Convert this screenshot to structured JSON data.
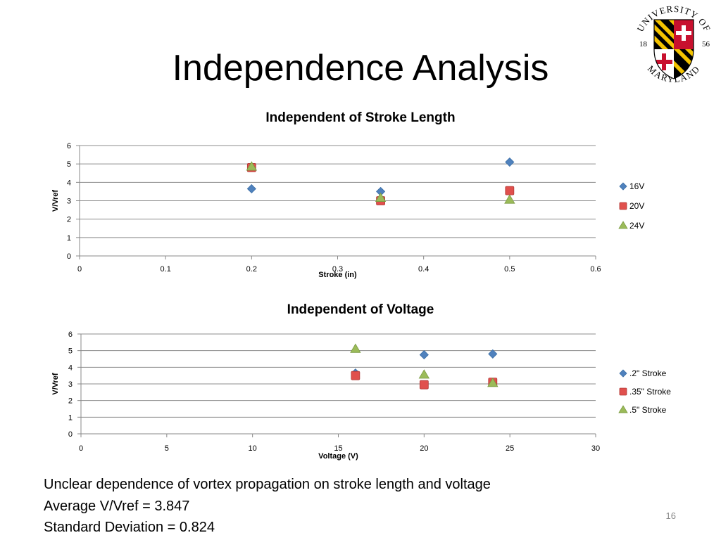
{
  "slide": {
    "title": "Independence Analysis",
    "page_number": "16"
  },
  "logo": {
    "ring_text": "UNIVERSITY OF MARYLAND",
    "year_left": "18",
    "year_right": "56"
  },
  "notes": [
    "Unclear dependence of vortex propagation on stroke length and voltage",
    "Average V/Vref = 3.847",
    "Standard Deviation = 0.824"
  ],
  "colors": {
    "series_blue": "#4f81bd",
    "series_red": "#e0504d",
    "series_green": "#9bbb59",
    "gridline": "#8c8c8c",
    "logo_red": "#c8102e",
    "logo_gold": "#f3c300"
  },
  "chart_data": [
    {
      "type": "scatter",
      "title": "Independent of Stroke Length",
      "xlabel": "Stroke (in)",
      "ylabel": "V/Vref",
      "xlim": [
        0,
        0.6
      ],
      "ylim": [
        0,
        6
      ],
      "xticks": [
        "0",
        "0.1",
        "0.2",
        "0.3",
        "0.4",
        "0.5",
        "0.6"
      ],
      "yticks": [
        "0",
        "1",
        "2",
        "3",
        "4",
        "5",
        "6"
      ],
      "grid": "horizontal",
      "legend_position": "right",
      "series": [
        {
          "name": "16V",
          "marker": "diamond",
          "color": "#4f81bd",
          "points": [
            [
              0.2,
              3.65
            ],
            [
              0.35,
              3.5
            ],
            [
              0.5,
              5.1
            ]
          ]
        },
        {
          "name": "20V",
          "marker": "square",
          "color": "#e0504d",
          "points": [
            [
              0.2,
              4.8
            ],
            [
              0.35,
              3.0
            ],
            [
              0.5,
              3.55
            ]
          ]
        },
        {
          "name": "24V",
          "marker": "triangle",
          "color": "#9bbb59",
          "points": [
            [
              0.2,
              4.85
            ],
            [
              0.35,
              3.15
            ],
            [
              0.5,
              3.05
            ]
          ]
        }
      ]
    },
    {
      "type": "scatter",
      "title": "Independent of Voltage",
      "xlabel": "Voltage (V)",
      "ylabel": "V/Vref",
      "xlim": [
        0,
        30
      ],
      "ylim": [
        0,
        6
      ],
      "xticks": [
        "0",
        "5",
        "10",
        "15",
        "20",
        "25",
        "30"
      ],
      "yticks": [
        "0",
        "1",
        "2",
        "3",
        "4",
        "5",
        "6"
      ],
      "grid": "horizontal",
      "legend_position": "right",
      "series": [
        {
          "name": ".2\" Stroke",
          "marker": "diamond",
          "color": "#4f81bd",
          "points": [
            [
              16,
              3.65
            ],
            [
              20,
              4.75
            ],
            [
              24,
              4.8
            ]
          ]
        },
        {
          "name": ".35\" Stroke",
          "marker": "square",
          "color": "#e0504d",
          "points": [
            [
              16,
              3.5
            ],
            [
              20,
              2.95
            ],
            [
              24,
              3.1
            ]
          ]
        },
        {
          "name": ".5\" Stroke",
          "marker": "triangle",
          "color": "#9bbb59",
          "points": [
            [
              16,
              5.1
            ],
            [
              20,
              3.55
            ],
            [
              24,
              3.05
            ]
          ]
        }
      ]
    }
  ]
}
